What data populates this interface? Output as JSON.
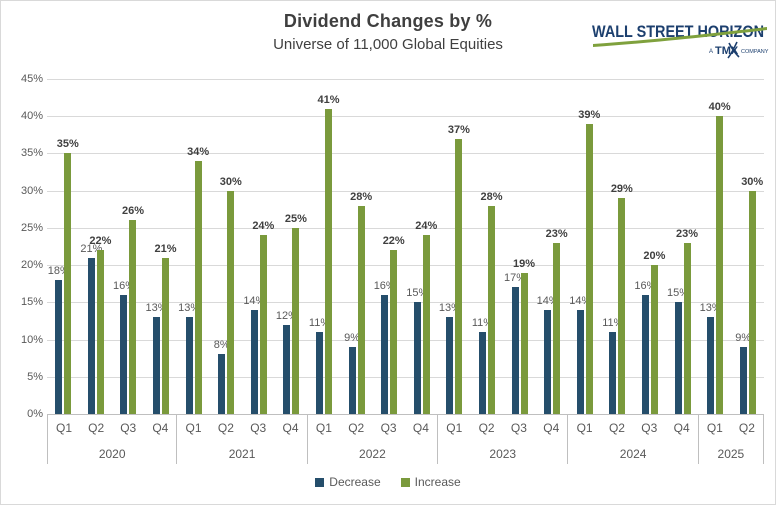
{
  "header": {
    "title": "Dividend Changes by %",
    "subtitle": "Universe of 11,000 Global Equities"
  },
  "logo": {
    "brand": "WALL STREET HORIZON",
    "tagline_prefix": "A",
    "tagline_bold": "TMX",
    "tagline_suffix": "COMPANY",
    "brand_color": "#1c3f6e",
    "swoosh_color": "#7fa13d"
  },
  "chart_data": {
    "type": "bar",
    "title": "Dividend Changes by %",
    "subtitle": "Universe of 11,000 Global Equities",
    "groups": [
      {
        "year": "2020",
        "quarters": [
          "Q1",
          "Q2",
          "Q3",
          "Q4"
        ]
      },
      {
        "year": "2021",
        "quarters": [
          "Q1",
          "Q2",
          "Q3",
          "Q4"
        ]
      },
      {
        "year": "2022",
        "quarters": [
          "Q1",
          "Q2",
          "Q3",
          "Q4"
        ]
      },
      {
        "year": "2023",
        "quarters": [
          "Q1",
          "Q2",
          "Q3",
          "Q4"
        ]
      },
      {
        "year": "2024",
        "quarters": [
          "Q1",
          "Q2",
          "Q3",
          "Q4"
        ]
      },
      {
        "year": "2025",
        "quarters": [
          "Q1",
          "Q2"
        ]
      }
    ],
    "series": [
      {
        "name": "Decrease",
        "color": "#254e6b",
        "values": [
          18,
          21,
          16,
          13,
          13,
          8,
          14,
          12,
          11,
          9,
          16,
          15,
          13,
          11,
          17,
          14,
          14,
          11,
          16,
          15,
          13,
          9
        ]
      },
      {
        "name": "Increase",
        "color": "#7a9a3c",
        "values": [
          35,
          22,
          26,
          21,
          34,
          30,
          24,
          25,
          41,
          28,
          22,
          24,
          37,
          28,
          19,
          23,
          39,
          29,
          20,
          23,
          40,
          30
        ]
      }
    ],
    "label_suffix": "%",
    "ylim": [
      0,
      45
    ],
    "ytick_step": 5,
    "ytick_labels": [
      "0%",
      "5%",
      "10%",
      "15%",
      "20%",
      "25%",
      "30%",
      "35%",
      "40%",
      "45%"
    ],
    "grid": true,
    "legend_position": "bottom"
  }
}
